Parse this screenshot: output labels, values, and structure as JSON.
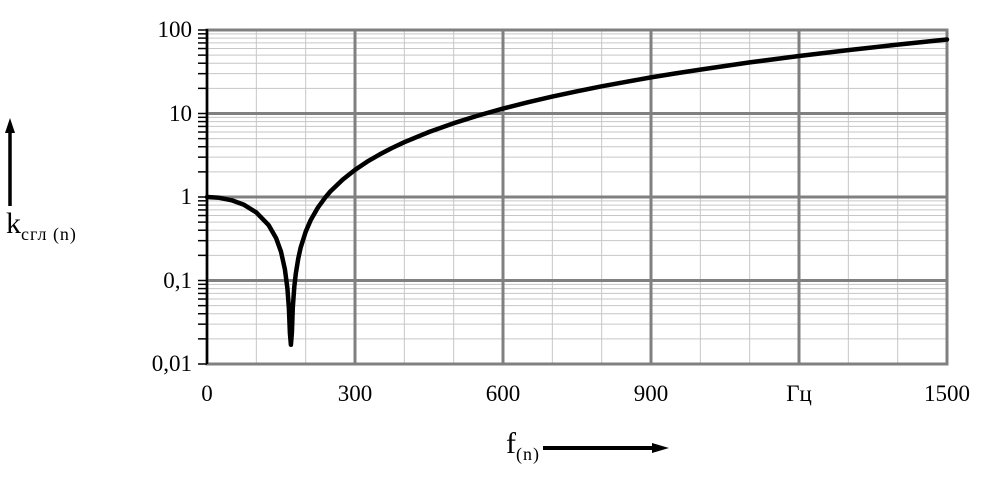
{
  "figure": {
    "y_axis_label": {
      "main": "k",
      "sub": "сгл (n)"
    },
    "x_axis_label": {
      "main": "f",
      "sub": "(n)"
    },
    "theme": {
      "background": "#ffffff",
      "curve": "#000000",
      "major_grid": "#808080",
      "minor_grid": "#c6c6c6",
      "axis": "#000000",
      "text": "#000000"
    }
  },
  "chart_data": {
    "type": "line",
    "title": "",
    "xlabel": "f(n)",
    "ylabel": "k сгл (n)",
    "x_unit_label": "Гц",
    "x_range": [
      0,
      1500
    ],
    "y_range": [
      0.01,
      100
    ],
    "y_scale": "log",
    "grid": "major+minor",
    "legend": "none",
    "x_major_ticks": {
      "values": [
        0,
        300,
        600,
        900,
        1200,
        1500
      ],
      "labels": [
        "0",
        "300",
        "600",
        "900",
        "Гц",
        "1500"
      ]
    },
    "x_minor_values": [
      100,
      200,
      400,
      500,
      700,
      800,
      1000,
      1100,
      1300,
      1400
    ],
    "y_major_ticks": {
      "values": [
        100,
        10,
        1,
        0.1,
        0.01
      ],
      "labels": [
        "100",
        "10",
        "1",
        "0,1",
        "0,01"
      ]
    },
    "y_minor_values": [
      0.02,
      0.03,
      0.04,
      0.05,
      0.06,
      0.07,
      0.08,
      0.09,
      0.2,
      0.3,
      0.4,
      0.5,
      0.6,
      0.7,
      0.8,
      0.9,
      2,
      3,
      4,
      5,
      6,
      7,
      8,
      9,
      20,
      30,
      40,
      50,
      60,
      70,
      80,
      90
    ],
    "reading_notes": "resonance notch at ~170 Hz, minimum k ~0.017; k(0)=1; k(1500)~77; matches k=|1-(f/170)^2|",
    "series": [
      {
        "name": "k_сгл(n)",
        "points": [
          [
            0,
            1.0
          ],
          [
            25,
            0.9784
          ],
          [
            50,
            0.9135
          ],
          [
            75,
            0.8054
          ],
          [
            100,
            0.654
          ],
          [
            125,
            0.4594
          ],
          [
            140,
            0.3218
          ],
          [
            150,
            0.2215
          ],
          [
            158,
            0.1363
          ],
          [
            163,
            0.0807
          ],
          [
            166,
            0.0465
          ],
          [
            168,
            0.0234
          ],
          [
            170,
            0.017
          ],
          [
            172,
            0.0237
          ],
          [
            174,
            0.0476
          ],
          [
            177,
            0.0841
          ],
          [
            180,
            0.1211
          ],
          [
            185,
            0.1843
          ],
          [
            190,
            0.2491
          ],
          [
            200,
            0.3841
          ],
          [
            210,
            0.526
          ],
          [
            225,
            0.7517
          ],
          [
            240,
            0.9931
          ],
          [
            250,
            1.163
          ],
          [
            275,
            1.616
          ],
          [
            300,
            2.114
          ],
          [
            325,
            2.655
          ],
          [
            350,
            3.239
          ],
          [
            375,
            3.866
          ],
          [
            400,
            4.536
          ],
          [
            450,
            6.008
          ],
          [
            500,
            7.651
          ],
          [
            550,
            9.467
          ],
          [
            600,
            11.46
          ],
          [
            650,
            13.62
          ],
          [
            700,
            15.95
          ],
          [
            750,
            18.46
          ],
          [
            800,
            21.15
          ],
          [
            850,
            24.0
          ],
          [
            900,
            27.03
          ],
          [
            950,
            30.23
          ],
          [
            1000,
            33.6
          ],
          [
            1100,
            40.87
          ],
          [
            1200,
            48.83
          ],
          [
            1300,
            57.48
          ],
          [
            1400,
            66.82
          ],
          [
            1500,
            76.86
          ]
        ]
      }
    ]
  }
}
